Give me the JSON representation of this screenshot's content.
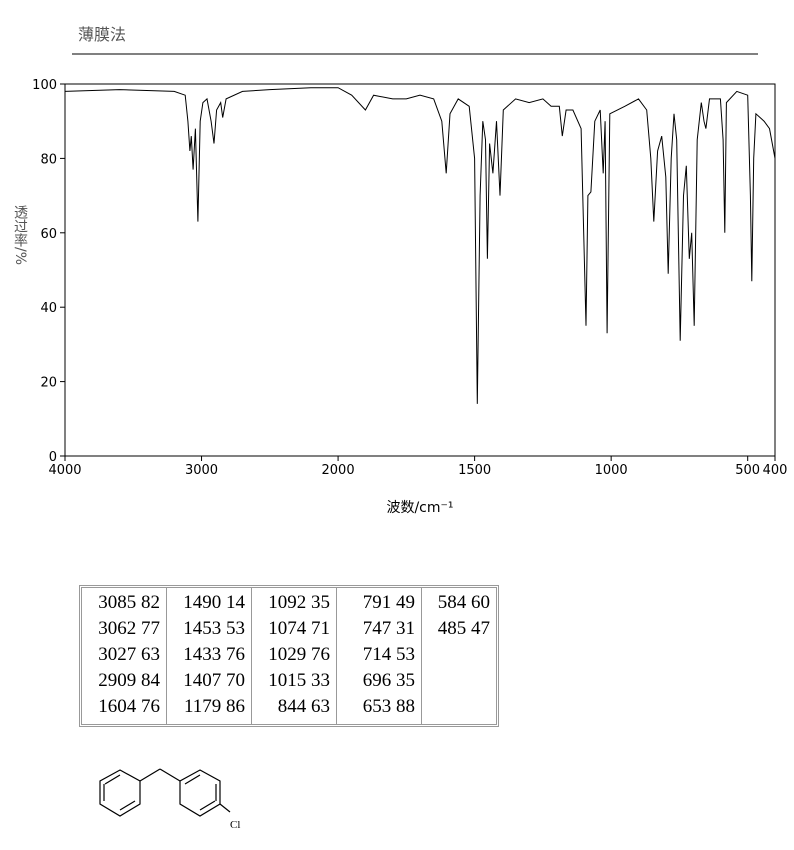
{
  "chart_data": {
    "type": "line",
    "title": "薄膜法",
    "x_label": "波数/cm⁻¹",
    "y_label": "透过率/%",
    "xlim": [
      4000,
      400
    ],
    "x_scale_break": 2000,
    "x_scale_factor": 2,
    "xticks": [
      4000,
      3000,
      2000,
      1500,
      1000,
      500,
      400
    ],
    "ylim": [
      0,
      100
    ],
    "yticks": [
      0,
      20,
      40,
      60,
      80,
      100
    ],
    "grid": false,
    "series": [
      {
        "color": "#000000",
        "x": [
          4000,
          3600,
          3200,
          3120,
          3100,
          3085,
          3075,
          3062,
          3045,
          3027,
          3010,
          2990,
          2960,
          2930,
          2909,
          2890,
          2860,
          2845,
          2820,
          2700,
          2500,
          2200,
          2000,
          1950,
          1900,
          1870,
          1800,
          1750,
          1700,
          1650,
          1620,
          1604,
          1590,
          1560,
          1520,
          1500,
          1490,
          1480,
          1470,
          1460,
          1453,
          1445,
          1433,
          1420,
          1407,
          1395,
          1350,
          1300,
          1250,
          1220,
          1190,
          1179,
          1165,
          1140,
          1110,
          1092,
          1085,
          1074,
          1060,
          1040,
          1029,
          1022,
          1015,
          1005,
          950,
          900,
          870,
          855,
          844,
          830,
          815,
          800,
          791,
          780,
          770,
          760,
          747,
          735,
          725,
          714,
          705,
          696,
          685,
          670,
          660,
          653,
          640,
          600,
          590,
          584,
          578,
          540,
          500,
          490,
          485,
          478,
          470,
          440,
          420,
          400
        ],
        "values": [
          98,
          98.5,
          98,
          97,
          90,
          82,
          86,
          77,
          88,
          63,
          90,
          95,
          96,
          90,
          84,
          93,
          95,
          91,
          96,
          98,
          98.5,
          99,
          99,
          97,
          93,
          97,
          96,
          96,
          97,
          96,
          90,
          76,
          92,
          96,
          94,
          80,
          14,
          70,
          90,
          85,
          53,
          84,
          76,
          90,
          70,
          93,
          96,
          95,
          96,
          94,
          94,
          86,
          93,
          93,
          88,
          35,
          70,
          71,
          90,
          93,
          76,
          90,
          33,
          92,
          94,
          96,
          93,
          80,
          63,
          82,
          86,
          75,
          49,
          80,
          92,
          85,
          31,
          70,
          78,
          53,
          60,
          35,
          85,
          95,
          90,
          88,
          96,
          96,
          85,
          60,
          95,
          98,
          97,
          70,
          47,
          80,
          92,
          90,
          88,
          80
        ]
      }
    ]
  },
  "peak_table": {
    "columns": [
      [
        [
          3085,
          82
        ],
        [
          3062,
          77
        ],
        [
          3027,
          63
        ],
        [
          2909,
          84
        ],
        [
          1604,
          76
        ]
      ],
      [
        [
          1490,
          14
        ],
        [
          1453,
          53
        ],
        [
          1433,
          76
        ],
        [
          1407,
          70
        ],
        [
          1179,
          86
        ]
      ],
      [
        [
          1092,
          35
        ],
        [
          1074,
          71
        ],
        [
          1029,
          76
        ],
        [
          1015,
          33
        ],
        [
          844,
          63
        ]
      ],
      [
        [
          791,
          49
        ],
        [
          747,
          31
        ],
        [
          714,
          53
        ],
        [
          696,
          35
        ],
        [
          653,
          88
        ]
      ],
      [
        [
          584,
          60
        ],
        [
          485,
          47
        ]
      ]
    ]
  },
  "structure": {
    "atom_label": "Cl"
  }
}
